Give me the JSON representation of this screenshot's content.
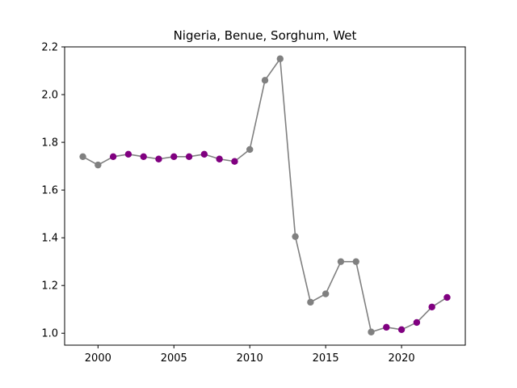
{
  "chart_data": {
    "type": "line",
    "title": "Nigeria, Benue, Sorghum, Wet",
    "xlabel": "",
    "ylabel": "",
    "xlim": [
      1997.8,
      2024.2
    ],
    "ylim": [
      0.95,
      2.2
    ],
    "xticks": [
      2000,
      2005,
      2010,
      2015,
      2020
    ],
    "yticks": [
      1.0,
      1.2,
      1.4,
      1.6,
      1.8,
      2.0,
      2.2
    ],
    "ytick_labels": [
      "1.0",
      "1.2",
      "1.4",
      "1.6",
      "1.8",
      "2.0",
      "2.2"
    ],
    "grid": false,
    "line_color": "#808080",
    "colors": {
      "gray": "#808080",
      "purple": "#800080"
    },
    "points": [
      {
        "x": 1999,
        "y": 1.74,
        "color": "gray"
      },
      {
        "x": 2000,
        "y": 1.705,
        "color": "gray"
      },
      {
        "x": 2001,
        "y": 1.74,
        "color": "purple"
      },
      {
        "x": 2002,
        "y": 1.75,
        "color": "purple"
      },
      {
        "x": 2003,
        "y": 1.74,
        "color": "purple"
      },
      {
        "x": 2004,
        "y": 1.73,
        "color": "purple"
      },
      {
        "x": 2005,
        "y": 1.74,
        "color": "purple"
      },
      {
        "x": 2006,
        "y": 1.74,
        "color": "purple"
      },
      {
        "x": 2007,
        "y": 1.75,
        "color": "purple"
      },
      {
        "x": 2008,
        "y": 1.73,
        "color": "purple"
      },
      {
        "x": 2009,
        "y": 1.72,
        "color": "purple"
      },
      {
        "x": 2010,
        "y": 1.77,
        "color": "gray"
      },
      {
        "x": 2011,
        "y": 2.06,
        "color": "gray"
      },
      {
        "x": 2012,
        "y": 2.15,
        "color": "gray"
      },
      {
        "x": 2013,
        "y": 1.405,
        "color": "gray"
      },
      {
        "x": 2014,
        "y": 1.13,
        "color": "gray"
      },
      {
        "x": 2015,
        "y": 1.165,
        "color": "gray"
      },
      {
        "x": 2016,
        "y": 1.3,
        "color": "gray"
      },
      {
        "x": 2017,
        "y": 1.3,
        "color": "gray"
      },
      {
        "x": 2018,
        "y": 1.005,
        "color": "gray"
      },
      {
        "x": 2019,
        "y": 1.025,
        "color": "purple"
      },
      {
        "x": 2020,
        "y": 1.015,
        "color": "purple"
      },
      {
        "x": 2021,
        "y": 1.045,
        "color": "purple"
      },
      {
        "x": 2022,
        "y": 1.11,
        "color": "purple"
      },
      {
        "x": 2023,
        "y": 1.15,
        "color": "purple"
      }
    ]
  }
}
